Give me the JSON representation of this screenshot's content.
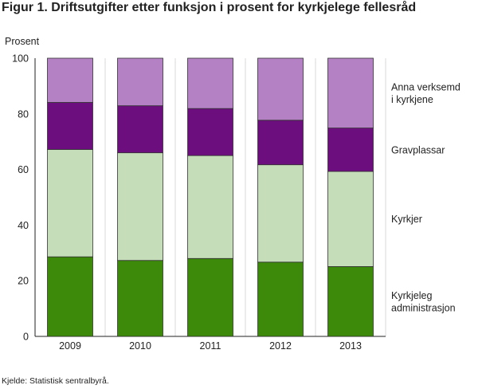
{
  "title": "Figur 1. Driftsutgifter etter funksjon i prosent for kyrkjelege fellesråd",
  "source": "Kjelde: Statistisk sentralbyrå.",
  "chart_data": {
    "type": "bar",
    "stacked": true,
    "categories": [
      "2009",
      "2010",
      "2011",
      "2012",
      "2013"
    ],
    "ylabel": "Prosent",
    "ylim": [
      0,
      100
    ],
    "yticks": [
      0,
      20,
      40,
      60,
      80,
      100
    ],
    "grid": "vertical",
    "legend_position": "right",
    "series": [
      {
        "name": [
          "Kyrkjeleg",
          "administrasjon"
        ],
        "color": "#3d8a0a",
        "values": [
          28.6,
          27.3,
          28.0,
          26.7,
          25.1
        ]
      },
      {
        "name": [
          "Kyrkjer"
        ],
        "color": "#c5ddb8",
        "values": [
          38.6,
          38.7,
          37.0,
          35.0,
          34.2
        ]
      },
      {
        "name": [
          "Gravplassar"
        ],
        "color": "#6c0e7e",
        "values": [
          16.9,
          16.9,
          16.9,
          16.0,
          15.6
        ]
      },
      {
        "name": [
          "Anna verksemd",
          "i kyrkjene"
        ],
        "color": "#b381c4",
        "values": [
          15.9,
          17.1,
          18.1,
          22.3,
          25.1
        ]
      }
    ]
  }
}
